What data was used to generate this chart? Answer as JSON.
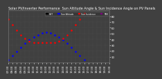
{
  "title": "Solar PV/Inverter Performance  Sun Altitude Angle & Sun Incidence Angle on PV Panels",
  "x_labels": [
    "07:30",
    "08:00",
    "08:30",
    "09:00",
    "09:30",
    "10:00",
    "10:30",
    "11:00",
    "11:30",
    "12:00",
    "12:30",
    "13:00",
    "13:30",
    "14:00",
    "14:30",
    "15:00",
    "15:30",
    "16:00",
    "16:30",
    "17:00",
    "17:30",
    "18:00",
    "18:30",
    "19:00",
    "19:30"
  ],
  "x_values": [
    7.5,
    8.0,
    8.5,
    9.0,
    9.5,
    10.0,
    10.5,
    11.0,
    11.5,
    12.0,
    12.5,
    13.0,
    13.5,
    14.0,
    14.5,
    15.0,
    15.5,
    16.0,
    16.5,
    17.0,
    17.5,
    18.0,
    18.5,
    19.0,
    19.5
  ],
  "altitude_y": [
    5,
    12,
    19,
    26,
    33,
    39,
    44,
    48,
    51,
    52,
    51,
    48,
    44,
    39,
    33,
    26,
    19,
    12,
    5,
    0,
    0,
    0,
    0,
    0,
    0
  ],
  "incidence_y": [
    75,
    65,
    56,
    47,
    41,
    37,
    35,
    34,
    34,
    34,
    34,
    35,
    37,
    41,
    47,
    56,
    65,
    75,
    85,
    0,
    0,
    0,
    0,
    0,
    0
  ],
  "altitude_color": "#0000ff",
  "incidence_color": "#ff0000",
  "bg_color": "#404040",
  "plot_bg": "#404040",
  "grid_color": "#606060",
  "ylim": [
    0,
    90
  ],
  "yticks": [
    10,
    20,
    30,
    40,
    50,
    60,
    70,
    80
  ],
  "xlim": [
    7.5,
    19.5
  ],
  "legend_items": [
    {
      "label": "HST",
      "color": "#000000"
    },
    {
      "label": "Sun Altitude",
      "color": "#0000ff"
    },
    {
      "label": "Sun Incidence",
      "color": "#ff0000"
    },
    {
      "label": "TBD",
      "color": "#800080"
    }
  ],
  "title_fontsize": 3.5,
  "tick_fontsize": 2.8
}
